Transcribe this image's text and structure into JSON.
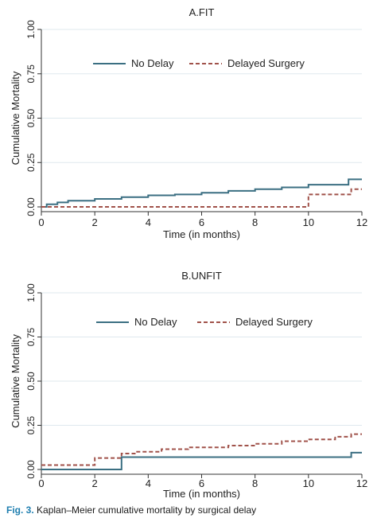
{
  "colors": {
    "no_delay": "#3b6f82",
    "delayed": "#a0524a",
    "grid": "#dfe9ee",
    "axis": "#333333"
  },
  "caption": {
    "label": "Fig. 3.",
    "text": "Kaplan–Meier cumulative mortality by surgical delay"
  },
  "chart_data": [
    {
      "type": "line",
      "step": true,
      "title": "A.FIT",
      "xlabel": "Time (in months)",
      "ylabel": "Cumulative Mortality",
      "xlim": [
        0,
        12
      ],
      "ylim": [
        0,
        1
      ],
      "xticks": [
        0,
        2,
        4,
        6,
        8,
        10,
        12
      ],
      "yticks": [
        "0.00",
        "0.25",
        "0.50",
        "0.75",
        "1.00"
      ],
      "ytick_values": [
        0,
        0.25,
        0.5,
        0.75,
        1.0
      ],
      "grid": true,
      "legend_position": "top",
      "series": [
        {
          "name": "No Delay",
          "style": "solid",
          "x": [
            0,
            0.2,
            0.6,
            1.0,
            2.0,
            3.0,
            4.0,
            5.0,
            6.0,
            7.0,
            8.0,
            9.0,
            10.0,
            11.5,
            12.0
          ],
          "y": [
            0.0,
            0.015,
            0.025,
            0.035,
            0.045,
            0.055,
            0.065,
            0.07,
            0.08,
            0.09,
            0.1,
            0.11,
            0.125,
            0.155,
            0.155
          ]
        },
        {
          "name": "Delayed Surgery",
          "style": "dashed",
          "x": [
            0,
            10.0,
            11.6,
            12.0
          ],
          "y": [
            0.0,
            0.07,
            0.1,
            0.1
          ]
        }
      ]
    },
    {
      "type": "line",
      "step": true,
      "title": "B.UNFIT",
      "xlabel": "Time (in months)",
      "ylabel": "Cumulative Mortality",
      "xlim": [
        0,
        12
      ],
      "ylim": [
        0,
        1
      ],
      "xticks": [
        0,
        2,
        4,
        6,
        8,
        10,
        12
      ],
      "yticks": [
        "0.00",
        "0.25",
        "0.50",
        "0.75",
        "1.00"
      ],
      "ytick_values": [
        0,
        0.25,
        0.5,
        0.75,
        1.0
      ],
      "grid": true,
      "legend_position": "top",
      "series": [
        {
          "name": "No Delay",
          "style": "solid",
          "x": [
            0,
            3.0,
            11.6,
            12.0
          ],
          "y": [
            0.0,
            0.07,
            0.095,
            0.095
          ]
        },
        {
          "name": "Delayed Surgery",
          "style": "dashed",
          "x": [
            0,
            2.0,
            3.0,
            3.5,
            4.5,
            5.5,
            7.0,
            8.0,
            9.0,
            10.0,
            11.0,
            11.6,
            12.0
          ],
          "y": [
            0.025,
            0.065,
            0.09,
            0.1,
            0.115,
            0.125,
            0.135,
            0.145,
            0.16,
            0.17,
            0.185,
            0.2,
            0.2
          ]
        }
      ]
    }
  ]
}
